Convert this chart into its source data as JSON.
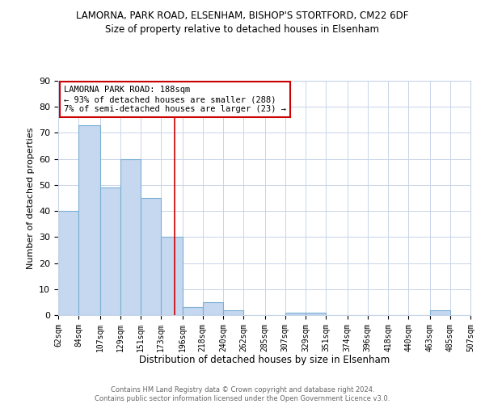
{
  "title": "LAMORNA, PARK ROAD, ELSENHAM, BISHOP'S STORTFORD, CM22 6DF",
  "subtitle": "Size of property relative to detached houses in Elsenham",
  "xlabel": "Distribution of detached houses by size in Elsenham",
  "ylabel": "Number of detached properties",
  "bin_edges": [
    62,
    84,
    107,
    129,
    151,
    173,
    196,
    218,
    240,
    262,
    285,
    307,
    329,
    351,
    374,
    396,
    418,
    440,
    463,
    485,
    507
  ],
  "bin_labels": [
    "62sqm",
    "84sqm",
    "107sqm",
    "129sqm",
    "151sqm",
    "173sqm",
    "196sqm",
    "218sqm",
    "240sqm",
    "262sqm",
    "285sqm",
    "307sqm",
    "329sqm",
    "351sqm",
    "374sqm",
    "396sqm",
    "418sqm",
    "440sqm",
    "463sqm",
    "485sqm",
    "507sqm"
  ],
  "counts": [
    40,
    73,
    49,
    60,
    45,
    30,
    3,
    5,
    2,
    0,
    0,
    1,
    1,
    0,
    0,
    0,
    0,
    0,
    2,
    0
  ],
  "bar_color": "#c5d8f0",
  "bar_edge_color": "#7bafd4",
  "vline_x": 188,
  "vline_color": "#cc0000",
  "annotation_text": "LAMORNA PARK ROAD: 188sqm\n← 93% of detached houses are smaller (288)\n7% of semi-detached houses are larger (23) →",
  "annotation_box_color": "#ffffff",
  "annotation_box_edge_color": "#cc0000",
  "ylim": [
    0,
    90
  ],
  "yticks": [
    0,
    10,
    20,
    30,
    40,
    50,
    60,
    70,
    80,
    90
  ],
  "footer_text": "Contains HM Land Registry data © Crown copyright and database right 2024.\nContains public sector information licensed under the Open Government Licence v3.0.",
  "background_color": "#ffffff",
  "grid_color": "#c8d4e8"
}
